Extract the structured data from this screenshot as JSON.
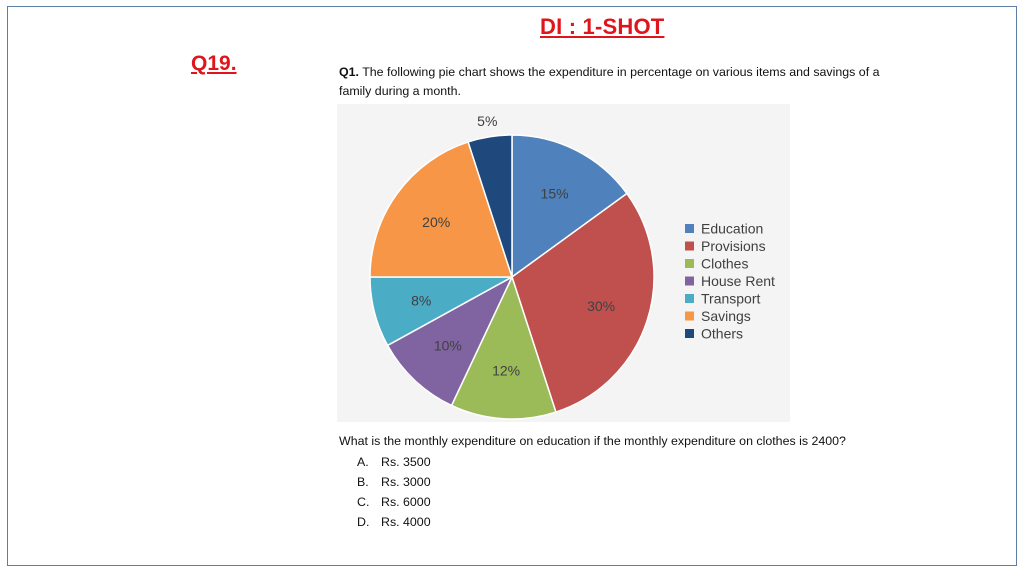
{
  "header": {
    "title": "DI : 1-SHOT",
    "question_number": "Q19."
  },
  "question": {
    "prefix": "Q1.",
    "text": "The following pie chart shows the expenditure in percentage on various items and savings of a family during a month.",
    "followup": "What is the monthly expenditure on education if the monthly expenditure on clothes is 2400?",
    "options": [
      {
        "letter": "A.",
        "text": "Rs. 3500"
      },
      {
        "letter": "B.",
        "text": "Rs. 3000"
      },
      {
        "letter": "C.",
        "text": "Rs. 6000"
      },
      {
        "letter": "D.",
        "text": "Rs. 4000"
      }
    ]
  },
  "chart_data": {
    "type": "pie",
    "title": "",
    "legend_position": "right",
    "slices": [
      {
        "label": "Education",
        "value": 15,
        "value_label": "15%",
        "color": "#4f81bd"
      },
      {
        "label": "Provisions",
        "value": 30,
        "value_label": "30%",
        "color": "#c0504d"
      },
      {
        "label": "Clothes",
        "value": 12,
        "value_label": "12%",
        "color": "#9bbb59"
      },
      {
        "label": "House Rent",
        "value": 10,
        "value_label": "10%",
        "color": "#8064a2"
      },
      {
        "label": "Transport",
        "value": 8,
        "value_label": "8%",
        "color": "#4bacc6"
      },
      {
        "label": "Savings",
        "value": 20,
        "value_label": "20%",
        "color": "#f79646"
      },
      {
        "label": "Others",
        "value": 5,
        "value_label": "5%",
        "color": "#1f497d"
      }
    ]
  }
}
